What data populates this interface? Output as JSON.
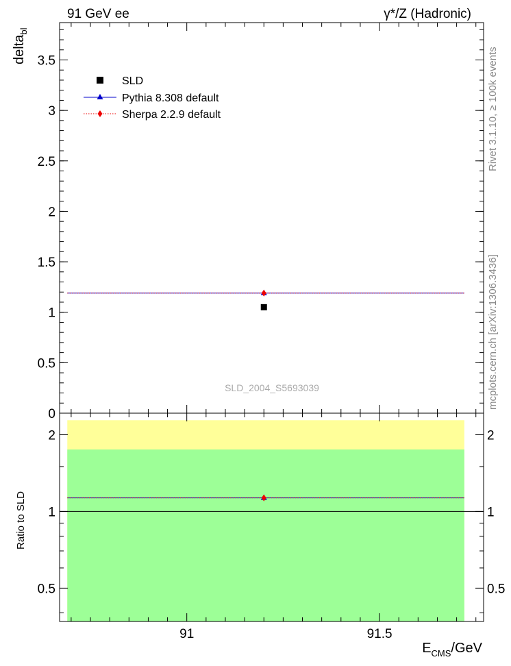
{
  "header": {
    "left": "91 GeV ee",
    "right": "γ*/Z (Hadronic)"
  },
  "side_labels": {
    "rivet": "Rivet 3.1.10, ≥ 100k events",
    "mcplots": "mcplots.cern.ch [arXiv:1306.3436]"
  },
  "watermark": "SLD_2004_S5693039",
  "chart_data": [
    {
      "type": "scatter",
      "panel": "main",
      "ylabel": "delta",
      "ylabel_sub": "bl",
      "xlim": [
        90.67,
        91.77
      ],
      "ylim": [
        0,
        3.87
      ],
      "yticks": [
        0,
        0.5,
        1,
        1.5,
        2,
        2.5,
        3,
        3.5
      ],
      "ytick_labels": [
        "0",
        "0.5",
        "1",
        "1.5",
        "2",
        "2.5",
        "3",
        "3.5"
      ],
      "legend_position": "top-left",
      "series": [
        {
          "name": "SLD",
          "color": "#000000",
          "marker": "square",
          "x": [
            91.2
          ],
          "y": [
            1.05
          ],
          "xerr": [
            0
          ],
          "yerr": [
            0.012
          ]
        },
        {
          "name": "Pythia 8.308 default",
          "color": "#0000cc",
          "marker": "triangle",
          "line": "solid",
          "x": [
            91.2
          ],
          "y": [
            1.19
          ],
          "xrange": [
            90.69,
            91.72
          ]
        },
        {
          "name": "Sherpa 2.2.9 default",
          "color": "#ee0000",
          "marker": "diamond",
          "line": "dotted",
          "x": [
            91.2
          ],
          "y": [
            1.19
          ],
          "xrange": [
            90.69,
            91.72
          ]
        }
      ]
    },
    {
      "type": "scatter",
      "panel": "ratio",
      "ylabel": "Ratio to SLD",
      "xlabel": "E",
      "xlabel_sub": "CMS",
      "xlabel_unit": "/GeV",
      "xlim": [
        90.67,
        91.77
      ],
      "ylim": [
        0.37,
        2.43
      ],
      "log_y": true,
      "xticks": [
        91,
        91.5
      ],
      "xtick_labels": [
        "91",
        "91.5"
      ],
      "yticks": [
        0.5,
        1,
        2
      ],
      "ytick_labels": [
        "0.5",
        "1",
        "2"
      ],
      "bands": [
        {
          "name": "2 sigma",
          "color": "#ffff99",
          "low": 0.37,
          "high": 2.28
        },
        {
          "name": "1 sigma",
          "color": "#9dff97",
          "low": 0.37,
          "high": 1.75
        }
      ],
      "reference_line": 1,
      "series": [
        {
          "name": "Pythia 8.308 default",
          "color": "#0000cc",
          "marker": "triangle",
          "line": "solid",
          "x": [
            91.2
          ],
          "y": [
            1.13
          ]
        },
        {
          "name": "Sherpa 2.2.9 default",
          "color": "#ee0000",
          "marker": "diamond",
          "line": "dotted",
          "x": [
            91.2
          ],
          "y": [
            1.13
          ]
        }
      ]
    }
  ]
}
